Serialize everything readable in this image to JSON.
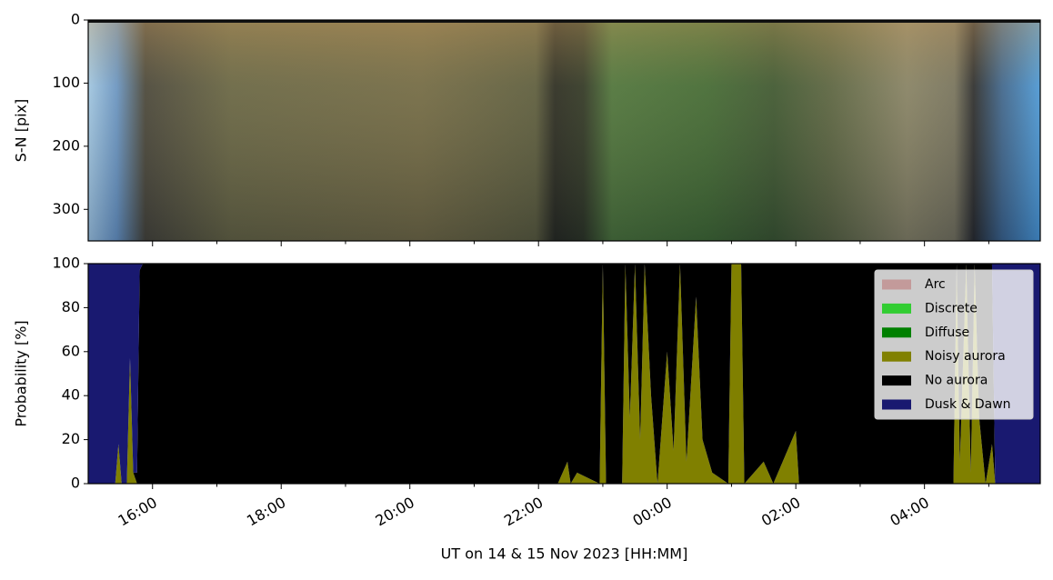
{
  "chart_data": [
    {
      "type": "image",
      "ylabel": "S-N [pix]",
      "xlim": [
        15,
        29.8
      ],
      "ylim": [
        0,
        350
      ],
      "yticks": [
        0,
        100,
        200,
        300
      ],
      "xticks": [
        16,
        18,
        20,
        22,
        24,
        26,
        28
      ],
      "xminor": [
        17,
        19,
        21,
        23,
        25,
        27,
        29
      ]
    },
    {
      "type": "stacked_area",
      "xlabel": "UT on 14 & 15 Nov 2023 [HH:MM]",
      "ylabel": "Probability [%]",
      "xlim": [
        15,
        29.8
      ],
      "ylim": [
        0,
        100
      ],
      "yticks": [
        0,
        20,
        40,
        60,
        80,
        100
      ],
      "xticks": [
        {
          "value": 16,
          "label": "16:00"
        },
        {
          "value": 18,
          "label": "18:00"
        },
        {
          "value": 20,
          "label": "20:00"
        },
        {
          "value": 22,
          "label": "22:00"
        },
        {
          "value": 24,
          "label": "00:00"
        },
        {
          "value": 26,
          "label": "02:00"
        },
        {
          "value": 28,
          "label": "04:00"
        }
      ],
      "xminor": [
        17,
        19,
        21,
        23,
        25,
        27,
        29
      ],
      "legend": "upper right",
      "x": [
        15.0,
        15.42,
        15.47,
        15.52,
        15.6,
        15.65,
        15.7,
        15.76,
        15.8,
        15.85,
        22.3,
        22.45,
        22.5,
        22.6,
        22.95,
        23.0,
        23.05,
        23.3,
        23.35,
        23.42,
        23.5,
        23.58,
        23.65,
        23.75,
        23.85,
        24.0,
        24.1,
        24.2,
        24.3,
        24.45,
        24.55,
        24.7,
        24.95,
        25.0,
        25.15,
        25.2,
        25.5,
        25.65,
        26.0,
        26.05,
        28.45,
        28.5,
        28.55,
        28.65,
        28.72,
        28.78,
        28.85,
        28.95,
        29.05,
        29.1,
        29.8
      ],
      "series": [
        {
          "name": "Arc",
          "color": "#c39a9a",
          "values": [
            0,
            0,
            0,
            0,
            0,
            0,
            0,
            0,
            0,
            0,
            0,
            0,
            0,
            0,
            0,
            0,
            0,
            0,
            0,
            0,
            0,
            0,
            0,
            0,
            0,
            0,
            0,
            0,
            0,
            0,
            0,
            0,
            0,
            0,
            0,
            0,
            0,
            0,
            0,
            0,
            0,
            0,
            0,
            0,
            0,
            0,
            0,
            0,
            0,
            0,
            0
          ]
        },
        {
          "name": "Discrete",
          "color": "#32cd32",
          "values": [
            0,
            0,
            0,
            0,
            0,
            0,
            0,
            0,
            0,
            0,
            0,
            0,
            0,
            0,
            0,
            0,
            0,
            0,
            0,
            0,
            0,
            0,
            0,
            0,
            0,
            0,
            0,
            0,
            0,
            0,
            0,
            0,
            0,
            0,
            0,
            0,
            0,
            0,
            0,
            0,
            0,
            0,
            0,
            0,
            0,
            0,
            0,
            0,
            0,
            0,
            0
          ]
        },
        {
          "name": "Diffuse",
          "color": "#008000",
          "values": [
            0,
            0,
            0,
            0,
            0,
            0,
            0,
            0,
            0,
            0,
            0,
            0,
            0,
            0,
            0,
            0,
            0,
            0,
            0,
            0,
            0,
            0,
            0,
            0,
            0,
            0,
            0,
            0,
            0,
            0,
            0,
            0,
            0,
            0,
            0,
            0,
            0,
            0,
            0,
            0,
            0,
            0,
            0,
            0,
            0,
            0,
            0,
            0,
            0,
            0,
            0
          ]
        },
        {
          "name": "Noisy aurora",
          "color": "#808000",
          "values": [
            0,
            0,
            18,
            0,
            0,
            57,
            5,
            0,
            0,
            0,
            0,
            10,
            0,
            5,
            0,
            100,
            0,
            0,
            100,
            30,
            100,
            20,
            100,
            40,
            0,
            60,
            15,
            100,
            10,
            85,
            20,
            5,
            0,
            100,
            100,
            0,
            10,
            0,
            24,
            0,
            0,
            100,
            10,
            100,
            5,
            100,
            30,
            0,
            18,
            0,
            0
          ]
        },
        {
          "name": "No aurora",
          "color": "#000000",
          "values": [
            0,
            0,
            0,
            0,
            0,
            0,
            0,
            5,
            97,
            100,
            100,
            90,
            100,
            95,
            100,
            0,
            100,
            100,
            0,
            70,
            0,
            80,
            0,
            60,
            100,
            40,
            85,
            0,
            90,
            15,
            80,
            95,
            100,
            0,
            0,
            100,
            90,
            100,
            76,
            100,
            100,
            0,
            90,
            0,
            95,
            0,
            70,
            100,
            82,
            0,
            0
          ]
        },
        {
          "name": "Dusk & Dawn",
          "color": "#191970",
          "values": [
            100,
            100,
            82,
            100,
            100,
            43,
            95,
            95,
            3,
            0,
            0,
            0,
            0,
            0,
            0,
            0,
            0,
            0,
            0,
            0,
            0,
            0,
            0,
            0,
            0,
            0,
            0,
            0,
            0,
            0,
            0,
            0,
            0,
            0,
            0,
            0,
            0,
            0,
            0,
            0,
            0,
            0,
            0,
            0,
            0,
            0,
            0,
            0,
            0,
            100,
            100
          ]
        }
      ]
    }
  ]
}
